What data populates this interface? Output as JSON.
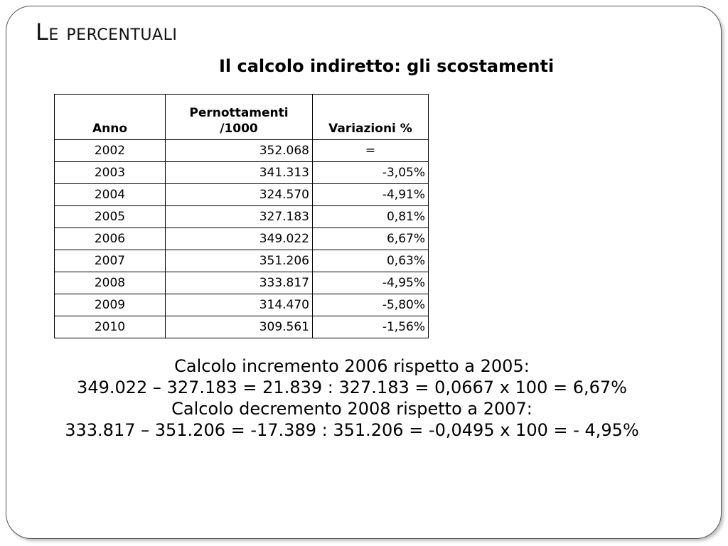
{
  "slide": {
    "title": "Le percentuali",
    "subtitle": "Il calcolo indiretto: gli scostamenti"
  },
  "table": {
    "headers": [
      "Anno",
      "Pernottamenti /1000",
      "Variazioni %"
    ],
    "rows": [
      {
        "anno": "2002",
        "pernottamenti": "352.068",
        "variazione": "="
      },
      {
        "anno": "2003",
        "pernottamenti": "341.313",
        "variazione": "-3,05%"
      },
      {
        "anno": "2004",
        "pernottamenti": "324.570",
        "variazione": "-4,91%"
      },
      {
        "anno": "2005",
        "pernottamenti": "327.183",
        "variazione": "0,81%"
      },
      {
        "anno": "2006",
        "pernottamenti": "349.022",
        "variazione": "6,67%"
      },
      {
        "anno": "2007",
        "pernottamenti": "351.206",
        "variazione": "0,63%"
      },
      {
        "anno": "2008",
        "pernottamenti": "333.817",
        "variazione": "-4,95%"
      },
      {
        "anno": "2009",
        "pernottamenti": "314.470",
        "variazione": "-5,80%"
      },
      {
        "anno": "2010",
        "pernottamenti": "309.561",
        "variazione": "-1,56%"
      }
    ]
  },
  "calculations": {
    "increment_title": "Calcolo incremento 2006 rispetto a 2005:",
    "increment_formula": "349.022 – 327.183 = 21.839 : 327.183 = 0,0667 x 100 = 6,67%",
    "decrement_title": "Calcolo decremento 2008 rispetto a 2007:",
    "decrement_formula": "333.817 – 351.206 = -17.389 : 351.206 = -0,0495 x 100 = - 4,95%"
  }
}
